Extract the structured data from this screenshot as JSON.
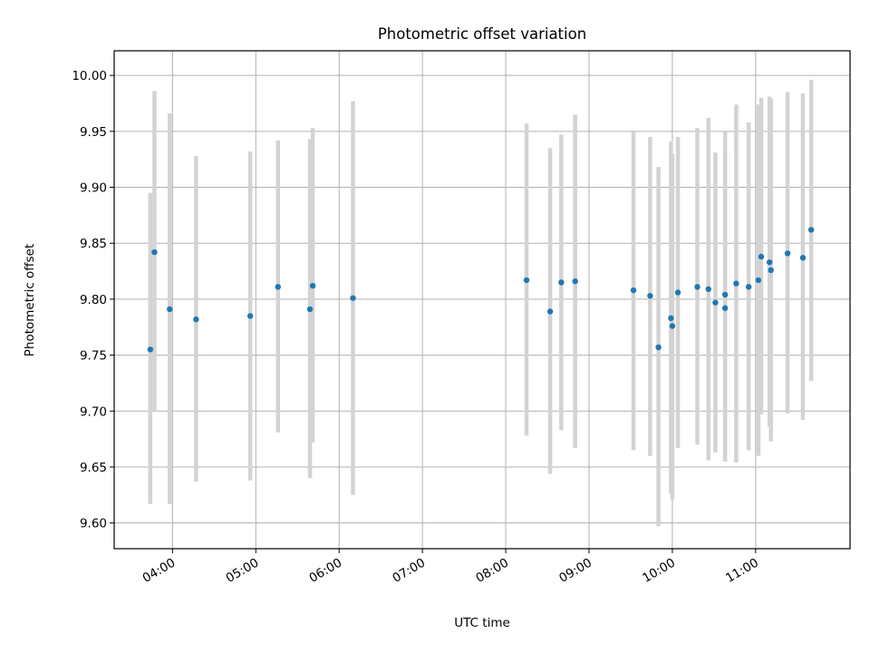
{
  "chart_data": {
    "type": "scatter",
    "title": "Photometric offset variation",
    "xlabel": "UTC time",
    "ylabel": "Photometric offset",
    "x_unit": "UTC time of day (HH:MM)",
    "xlim": [
      "03:18",
      "12:08"
    ],
    "ylim": [
      9.577,
      10.022
    ],
    "x_ticks": [
      "04:00",
      "05:00",
      "06:00",
      "07:00",
      "08:00",
      "09:00",
      "10:00",
      "11:00"
    ],
    "y_ticks": [
      9.6,
      9.65,
      9.7,
      9.75,
      9.8,
      9.85,
      9.9,
      9.95,
      10.0
    ],
    "y_tick_labels": [
      "9.60",
      "9.65",
      "9.70",
      "9.75",
      "9.80",
      "9.85",
      "9.90",
      "9.95",
      "10.00"
    ],
    "grid": true,
    "colors": {
      "points": "#1f77b4",
      "error_bars": "#d3d3d3",
      "grid": "#b0b0b0"
    },
    "series": [
      {
        "points": [
          {
            "time": "03:44",
            "y": 9.755,
            "ylow": 9.617,
            "yhigh": 9.895
          },
          {
            "time": "03:47",
            "y": 9.842,
            "ylow": 9.7,
            "yhigh": 9.986
          },
          {
            "time": "03:58",
            "y": 9.791,
            "ylow": 9.617,
            "yhigh": 9.966
          },
          {
            "time": "04:17",
            "y": 9.782,
            "ylow": 9.637,
            "yhigh": 9.928
          },
          {
            "time": "04:56",
            "y": 9.785,
            "ylow": 9.638,
            "yhigh": 9.932
          },
          {
            "time": "05:16",
            "y": 9.811,
            "ylow": 9.681,
            "yhigh": 9.942
          },
          {
            "time": "05:39",
            "y": 9.791,
            "ylow": 9.64,
            "yhigh": 9.943
          },
          {
            "time": "05:41",
            "y": 9.812,
            "ylow": 9.672,
            "yhigh": 9.953
          },
          {
            "time": "06:10",
            "y": 9.801,
            "ylow": 9.625,
            "yhigh": 9.977
          },
          {
            "time": "08:15",
            "y": 9.817,
            "ylow": 9.678,
            "yhigh": 9.957
          },
          {
            "time": "08:32",
            "y": 9.789,
            "ylow": 9.644,
            "yhigh": 9.935
          },
          {
            "time": "08:40",
            "y": 9.815,
            "ylow": 9.683,
            "yhigh": 9.947
          },
          {
            "time": "08:50",
            "y": 9.816,
            "ylow": 9.667,
            "yhigh": 9.965
          },
          {
            "time": "09:32",
            "y": 9.808,
            "ylow": 9.665,
            "yhigh": 9.951
          },
          {
            "time": "09:44",
            "y": 9.803,
            "ylow": 9.66,
            "yhigh": 9.945
          },
          {
            "time": "09:50",
            "y": 9.757,
            "ylow": 9.597,
            "yhigh": 9.918
          },
          {
            "time": "09:59",
            "y": 9.783,
            "ylow": 9.626,
            "yhigh": 9.941
          },
          {
            "time": "10:00",
            "y": 9.776,
            "ylow": 9.621,
            "yhigh": 9.93
          },
          {
            "time": "10:04",
            "y": 9.806,
            "ylow": 9.667,
            "yhigh": 9.945
          },
          {
            "time": "10:18",
            "y": 9.811,
            "ylow": 9.67,
            "yhigh": 9.953
          },
          {
            "time": "10:26",
            "y": 9.809,
            "ylow": 9.656,
            "yhigh": 9.962
          },
          {
            "time": "10:31",
            "y": 9.797,
            "ylow": 9.663,
            "yhigh": 9.931
          },
          {
            "time": "10:38",
            "y": 9.792,
            "ylow": 9.655,
            "yhigh": 9.931
          },
          {
            "time": "10:38",
            "y": 9.804,
            "ylow": 9.655,
            "yhigh": 9.95
          },
          {
            "time": "10:46",
            "y": 9.814,
            "ylow": 9.654,
            "yhigh": 9.974
          },
          {
            "time": "10:55",
            "y": 9.811,
            "ylow": 9.665,
            "yhigh": 9.958
          },
          {
            "time": "11:02",
            "y": 9.817,
            "ylow": 9.66,
            "yhigh": 9.974
          },
          {
            "time": "11:04",
            "y": 9.838,
            "ylow": 9.697,
            "yhigh": 9.98
          },
          {
            "time": "11:10",
            "y": 9.833,
            "ylow": 9.686,
            "yhigh": 9.981
          },
          {
            "time": "11:11",
            "y": 9.826,
            "ylow": 9.673,
            "yhigh": 9.979
          },
          {
            "time": "11:23",
            "y": 9.841,
            "ylow": 9.698,
            "yhigh": 9.985
          },
          {
            "time": "11:34",
            "y": 9.837,
            "ylow": 9.692,
            "yhigh": 9.984
          },
          {
            "time": "11:40",
            "y": 9.862,
            "ylow": 9.727,
            "yhigh": 9.996
          }
        ]
      }
    ]
  }
}
